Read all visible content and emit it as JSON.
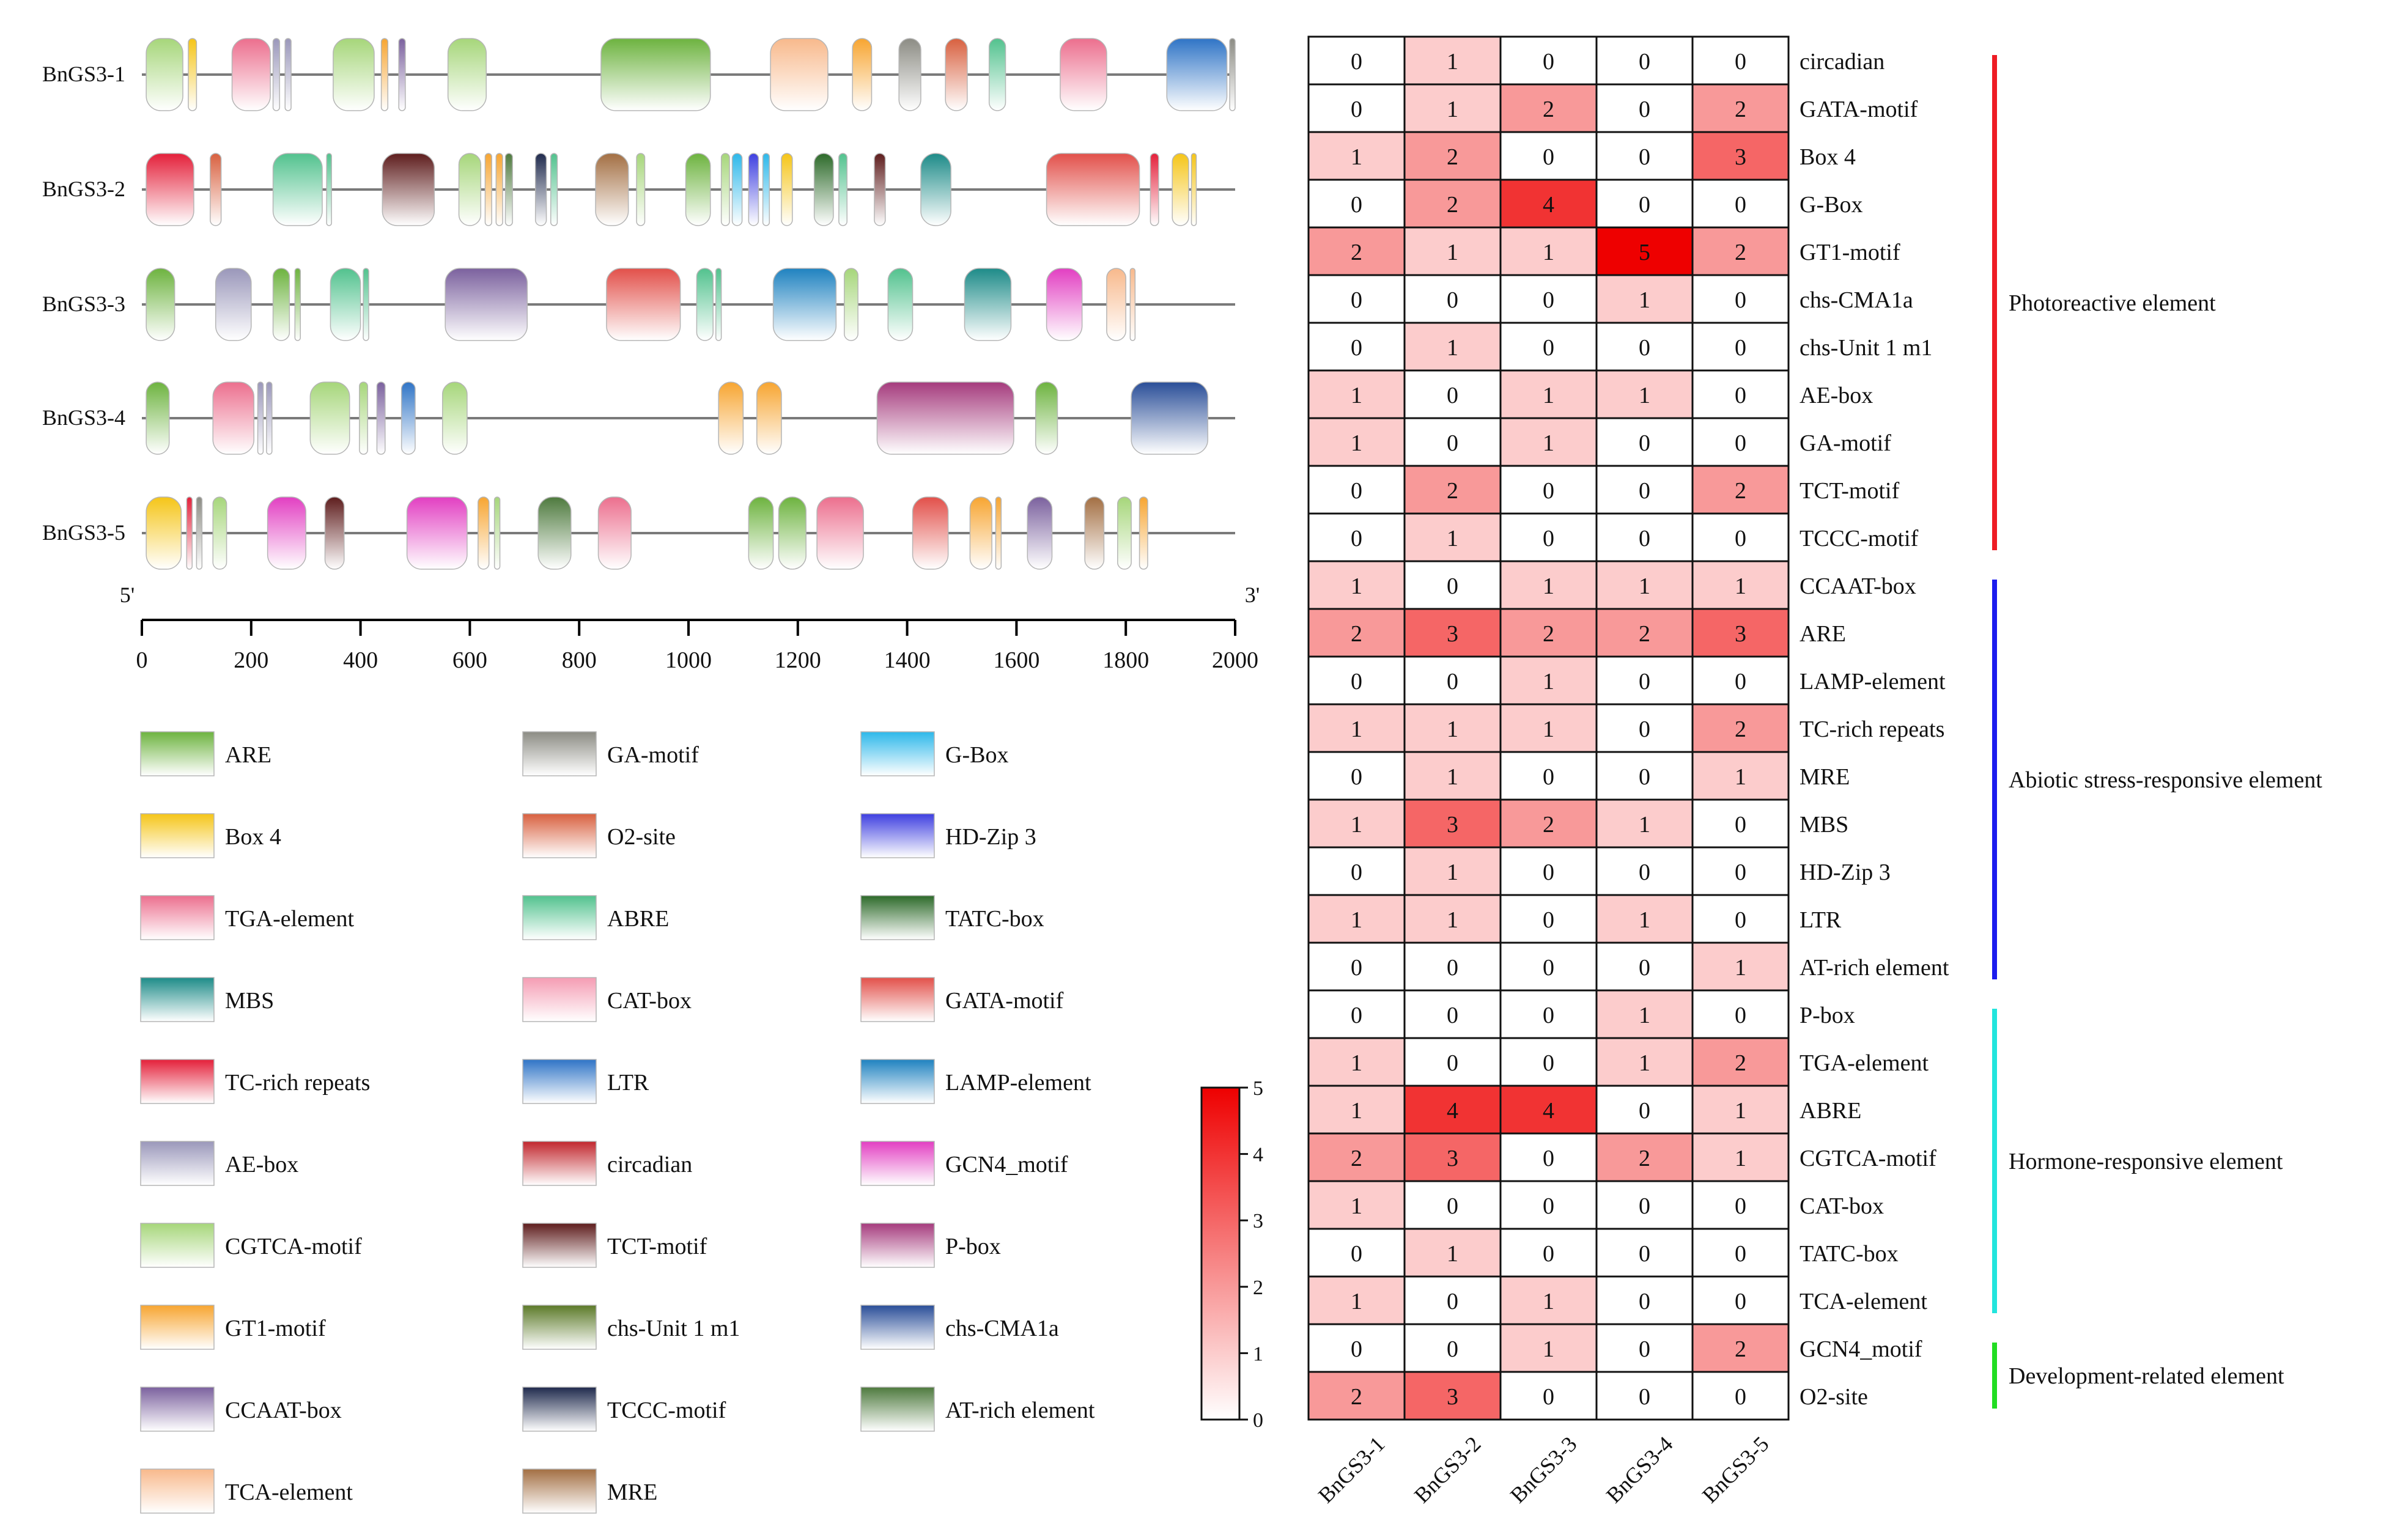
{
  "chart_data": [
    {
      "type": "diagram",
      "title": "",
      "prime5": "5'",
      "prime3": "3'",
      "axis": {
        "min": 0,
        "max": 2000,
        "ticks": [
          "0",
          "200",
          "400",
          "600",
          "800",
          "1000",
          "1200",
          "1400",
          "1600",
          "1800",
          "2000"
        ]
      },
      "genes": [
        {
          "name": "BnGS3-1",
          "elements": [
            {
              "t": "CGTCA-motif",
              "s": 8,
              "e": 75
            },
            {
              "t": "Box 4",
              "s": 85,
              "e": 100
            },
            {
              "t": "TGA-element",
              "s": 165,
              "e": 235
            },
            {
              "t": "AE-box",
              "s": 240,
              "e": 252
            },
            {
              "t": "AE-box",
              "s": 262,
              "e": 273
            },
            {
              "t": "CGTCA-motif",
              "s": 350,
              "e": 425
            },
            {
              "t": "GT1-motif",
              "s": 438,
              "e": 450
            },
            {
              "t": "CCAAT-box",
              "s": 470,
              "e": 482
            },
            {
              "t": "CGTCA-motif",
              "s": 560,
              "e": 630
            },
            {
              "t": "ARE",
              "s": 840,
              "e": 1040
            },
            {
              "t": "TCA-element",
              "s": 1150,
              "e": 1255
            },
            {
              "t": "GT1-motif",
              "s": 1300,
              "e": 1335
            },
            {
              "t": "GA-motif",
              "s": 1385,
              "e": 1425
            },
            {
              "t": "O2-site",
              "s": 1470,
              "e": 1510
            },
            {
              "t": "ABRE",
              "s": 1550,
              "e": 1580
            },
            {
              "t": "TGA-element",
              "s": 1680,
              "e": 1765
            },
            {
              "t": "LTR",
              "s": 1875,
              "e": 1985
            },
            {
              "t": "GA-motif",
              "s": 1990,
              "e": 2000
            }
          ]
        },
        {
          "name": "BnGS3-2",
          "elements": [
            {
              "t": "TC-rich repeats",
              "s": 8,
              "e": 95
            },
            {
              "t": "O2-site",
              "s": 125,
              "e": 145
            },
            {
              "t": "ABRE",
              "s": 240,
              "e": 330
            },
            {
              "t": "ABRE",
              "s": 338,
              "e": 345
            },
            {
              "t": "TCT-motif",
              "s": 440,
              "e": 535
            },
            {
              "t": "CGTCA-motif",
              "s": 580,
              "e": 620
            },
            {
              "t": "GT1-motif",
              "s": 628,
              "e": 640
            },
            {
              "t": "GT1-motif",
              "s": 648,
              "e": 660
            },
            {
              "t": "AT-rich element",
              "s": 665,
              "e": 678
            },
            {
              "t": "TCCC-motif",
              "s": 720,
              "e": 740
            },
            {
              "t": "ABRE",
              "s": 748,
              "e": 760
            },
            {
              "t": "MRE",
              "s": 830,
              "e": 890
            },
            {
              "t": "CGTCA-motif",
              "s": 905,
              "e": 920
            },
            {
              "t": "ARE",
              "s": 995,
              "e": 1040
            },
            {
              "t": "CGTCA-motif",
              "s": 1060,
              "e": 1075
            },
            {
              "t": "G-Box",
              "s": 1080,
              "e": 1098
            },
            {
              "t": "HD-Zip 3",
              "s": 1110,
              "e": 1128
            },
            {
              "t": "G-Box",
              "s": 1136,
              "e": 1148
            },
            {
              "t": "Box 4",
              "s": 1170,
              "e": 1190
            },
            {
              "t": "TATC-box",
              "s": 1230,
              "e": 1265
            },
            {
              "t": "ABRE",
              "s": 1275,
              "e": 1290
            },
            {
              "t": "TCT-motif",
              "s": 1340,
              "e": 1360
            },
            {
              "t": "MBS",
              "s": 1425,
              "e": 1480
            },
            {
              "t": "GATA-motif",
              "s": 1655,
              "e": 1825
            },
            {
              "t": "TC-rich repeats",
              "s": 1845,
              "e": 1860
            },
            {
              "t": "Box 4",
              "s": 1885,
              "e": 1915
            },
            {
              "t": "Box 4",
              "s": 1920,
              "e": 1925
            }
          ]
        },
        {
          "name": "BnGS3-3",
          "elements": [
            {
              "t": "ARE",
              "s": 8,
              "e": 60
            },
            {
              "t": "AE-box",
              "s": 135,
              "e": 200
            },
            {
              "t": "ARE",
              "s": 240,
              "e": 270
            },
            {
              "t": "ARE",
              "s": 280,
              "e": 290
            },
            {
              "t": "ABRE",
              "s": 345,
              "e": 400
            },
            {
              "t": "ABRE",
              "s": 405,
              "e": 415
            },
            {
              "t": "CCAAT-box",
              "s": 555,
              "e": 705
            },
            {
              "t": "GATA-motif",
              "s": 850,
              "e": 985
            },
            {
              "t": "ABRE",
              "s": 1015,
              "e": 1045
            },
            {
              "t": "ABRE",
              "s": 1050,
              "e": 1060
            },
            {
              "t": "LAMP-element",
              "s": 1155,
              "e": 1270
            },
            {
              "t": "CGTCA-motif",
              "s": 1285,
              "e": 1310
            },
            {
              "t": "ABRE",
              "s": 1365,
              "e": 1410
            },
            {
              "t": "MBS",
              "s": 1505,
              "e": 1590
            },
            {
              "t": "GCN4_motif",
              "s": 1655,
              "e": 1720
            },
            {
              "t": "TCA-element",
              "s": 1765,
              "e": 1800
            },
            {
              "t": "TCA-element",
              "s": 1808,
              "e": 1815
            }
          ]
        },
        {
          "name": "BnGS3-4",
          "elements": [
            {
              "t": "ARE",
              "s": 8,
              "e": 50
            },
            {
              "t": "TGA-element",
              "s": 130,
              "e": 205
            },
            {
              "t": "AE-box",
              "s": 212,
              "e": 222
            },
            {
              "t": "AE-box",
              "s": 228,
              "e": 238
            },
            {
              "t": "CGTCA-motif",
              "s": 308,
              "e": 380
            },
            {
              "t": "CGTCA-motif",
              "s": 398,
              "e": 413
            },
            {
              "t": "CCAAT-box",
              "s": 430,
              "e": 445
            },
            {
              "t": "LTR",
              "s": 475,
              "e": 500
            },
            {
              "t": "CGTCA-motif",
              "s": 550,
              "e": 595
            },
            {
              "t": "GT1-motif",
              "s": 1055,
              "e": 1100
            },
            {
              "t": "GT1-motif",
              "s": 1125,
              "e": 1170
            },
            {
              "t": "P-box",
              "s": 1345,
              "e": 1595
            },
            {
              "t": "ARE",
              "s": 1635,
              "e": 1675
            },
            {
              "t": "chs-CMA1a",
              "s": 1810,
              "e": 1950
            }
          ]
        },
        {
          "name": "BnGS3-5",
          "elements": [
            {
              "t": "Box 4",
              "s": 8,
              "e": 72
            },
            {
              "t": "TC-rich repeats",
              "s": 82,
              "e": 92
            },
            {
              "t": "GA-motif",
              "s": 100,
              "e": 110
            },
            {
              "t": "CGTCA-motif",
              "s": 130,
              "e": 155
            },
            {
              "t": "GCN4_motif",
              "s": 230,
              "e": 300
            },
            {
              "t": "TCT-motif",
              "s": 335,
              "e": 370
            },
            {
              "t": "GCN4_motif",
              "s": 485,
              "e": 595
            },
            {
              "t": "GT1-motif",
              "s": 615,
              "e": 635
            },
            {
              "t": "CGTCA-motif",
              "s": 645,
              "e": 655
            },
            {
              "t": "AT-rich element",
              "s": 725,
              "e": 785
            },
            {
              "t": "TGA-element",
              "s": 835,
              "e": 895
            },
            {
              "t": "ARE",
              "s": 1110,
              "e": 1155
            },
            {
              "t": "ARE",
              "s": 1165,
              "e": 1215
            },
            {
              "t": "TGA-element",
              "s": 1235,
              "e": 1320
            },
            {
              "t": "GATA-motif",
              "s": 1410,
              "e": 1475
            },
            {
              "t": "GT1-motif",
              "s": 1515,
              "e": 1555
            },
            {
              "t": "GT1-motif",
              "s": 1562,
              "e": 1572
            },
            {
              "t": "CCAAT-box",
              "s": 1620,
              "e": 1665
            },
            {
              "t": "MRE",
              "s": 1725,
              "e": 1760
            },
            {
              "t": "CGTCA-motif",
              "s": 1785,
              "e": 1810
            },
            {
              "t": "GT1-motif",
              "s": 1825,
              "e": 1840
            }
          ]
        }
      ]
    },
    {
      "type": "heatmap",
      "title": "",
      "columns": [
        "BnGS3-1",
        "BnGS3-2",
        "BnGS3-3",
        "BnGS3-4",
        "BnGS3-5"
      ],
      "rows": [
        "circadian",
        "GATA-motif",
        "Box 4",
        "G-Box",
        "GT1-motif",
        "chs-CMA1a",
        "chs-Unit 1 m1",
        "AE-box",
        "GA-motif",
        "TCT-motif",
        "TCCC-motif",
        "CCAAT-box",
        "ARE",
        "LAMP-element",
        "TC-rich repeats",
        "MRE",
        "MBS",
        "HD-Zip 3",
        "LTR",
        "AT-rich element",
        "P-box",
        "TGA-element",
        "ABRE",
        "CGTCA-motif",
        "CAT-box",
        "TATC-box",
        "TCA-element",
        "GCN4_motif",
        "O2-site"
      ],
      "values": [
        [
          0,
          1,
          0,
          0,
          0
        ],
        [
          0,
          1,
          2,
          0,
          2
        ],
        [
          1,
          2,
          0,
          0,
          3
        ],
        [
          0,
          2,
          4,
          0,
          0
        ],
        [
          2,
          1,
          1,
          5,
          2
        ],
        [
          0,
          0,
          0,
          1,
          0
        ],
        [
          0,
          1,
          0,
          0,
          0
        ],
        [
          1,
          0,
          1,
          1,
          0
        ],
        [
          1,
          0,
          1,
          0,
          0
        ],
        [
          0,
          2,
          0,
          0,
          2
        ],
        [
          0,
          1,
          0,
          0,
          0
        ],
        [
          1,
          0,
          1,
          1,
          1
        ],
        [
          2,
          3,
          2,
          2,
          3
        ],
        [
          0,
          0,
          1,
          0,
          0
        ],
        [
          1,
          1,
          1,
          0,
          2
        ],
        [
          0,
          1,
          0,
          0,
          1
        ],
        [
          1,
          3,
          2,
          1,
          0
        ],
        [
          0,
          1,
          0,
          0,
          0
        ],
        [
          1,
          1,
          0,
          1,
          0
        ],
        [
          0,
          0,
          0,
          0,
          1
        ],
        [
          0,
          0,
          0,
          1,
          0
        ],
        [
          1,
          0,
          0,
          1,
          2
        ],
        [
          1,
          4,
          4,
          0,
          1
        ],
        [
          2,
          3,
          0,
          2,
          1
        ],
        [
          1,
          0,
          0,
          0,
          0
        ],
        [
          0,
          1,
          0,
          0,
          0
        ],
        [
          1,
          0,
          1,
          0,
          0
        ],
        [
          0,
          0,
          1,
          0,
          2
        ],
        [
          2,
          3,
          0,
          0,
          0
        ]
      ],
      "colorbar": {
        "min": 0,
        "max": 5,
        "ticks": [
          "0",
          "1",
          "2",
          "3",
          "4",
          "5"
        ],
        "low_color": "#ffffff",
        "high_color": "#ee0000"
      },
      "groups": [
        {
          "label": "Photoreactive element",
          "color": "#ee1c24",
          "first": 0,
          "last": 10
        },
        {
          "label": "Abiotic stress-responsive element",
          "color": "#1c1cee",
          "first": 11,
          "last": 19
        },
        {
          "label": "Hormone-responsive element",
          "color": "#22e5dd",
          "first": 20,
          "last": 26
        },
        {
          "label": "Development-related element",
          "color": "#22dd22",
          "first": 27,
          "last": 28
        }
      ]
    }
  ],
  "legend": [
    {
      "name": "ARE",
      "color": "#6db33f"
    },
    {
      "name": "Box 4",
      "color": "#f5c518"
    },
    {
      "name": "TGA-element",
      "color": "#ec6f8e"
    },
    {
      "name": "MBS",
      "color": "#1d8b88"
    },
    {
      "name": "TC-rich repeats",
      "color": "#e4203a"
    },
    {
      "name": "AE-box",
      "color": "#9a97ba"
    },
    {
      "name": "CGTCA-motif",
      "color": "#a6d67a"
    },
    {
      "name": "GT1-motif",
      "color": "#f7a531"
    },
    {
      "name": "CCAAT-box",
      "color": "#7b619e"
    },
    {
      "name": "TCA-element",
      "color": "#f8b98c"
    },
    {
      "name": "GA-motif",
      "color": "#8c8c84"
    },
    {
      "name": "O2-site",
      "color": "#d8603f"
    },
    {
      "name": "ABRE",
      "color": "#52c28e"
    },
    {
      "name": "CAT-box",
      "color": "#f59cb3"
    },
    {
      "name": "LTR",
      "color": "#2f74c6"
    },
    {
      "name": "circadian",
      "color": "#c1272d"
    },
    {
      "name": "TCT-motif",
      "color": "#5e1d1d"
    },
    {
      "name": "chs-Unit 1 m1",
      "color": "#5c7a29"
    },
    {
      "name": "TCCC-motif",
      "color": "#1f2a4d"
    },
    {
      "name": "MRE",
      "color": "#a36f43"
    },
    {
      "name": "G-Box",
      "color": "#2db8ea"
    },
    {
      "name": "HD-Zip 3",
      "color": "#3e3fe0"
    },
    {
      "name": "TATC-box",
      "color": "#2d6a2a"
    },
    {
      "name": "GATA-motif",
      "color": "#e2504a"
    },
    {
      "name": "LAMP-element",
      "color": "#1f82c0"
    },
    {
      "name": "GCN4_motif",
      "color": "#e23fc2"
    },
    {
      "name": "P-box",
      "color": "#a53b7d"
    },
    {
      "name": "chs-CMA1a",
      "color": "#2a4e98"
    },
    {
      "name": "AT-rich element",
      "color": "#4e7a3e"
    }
  ]
}
